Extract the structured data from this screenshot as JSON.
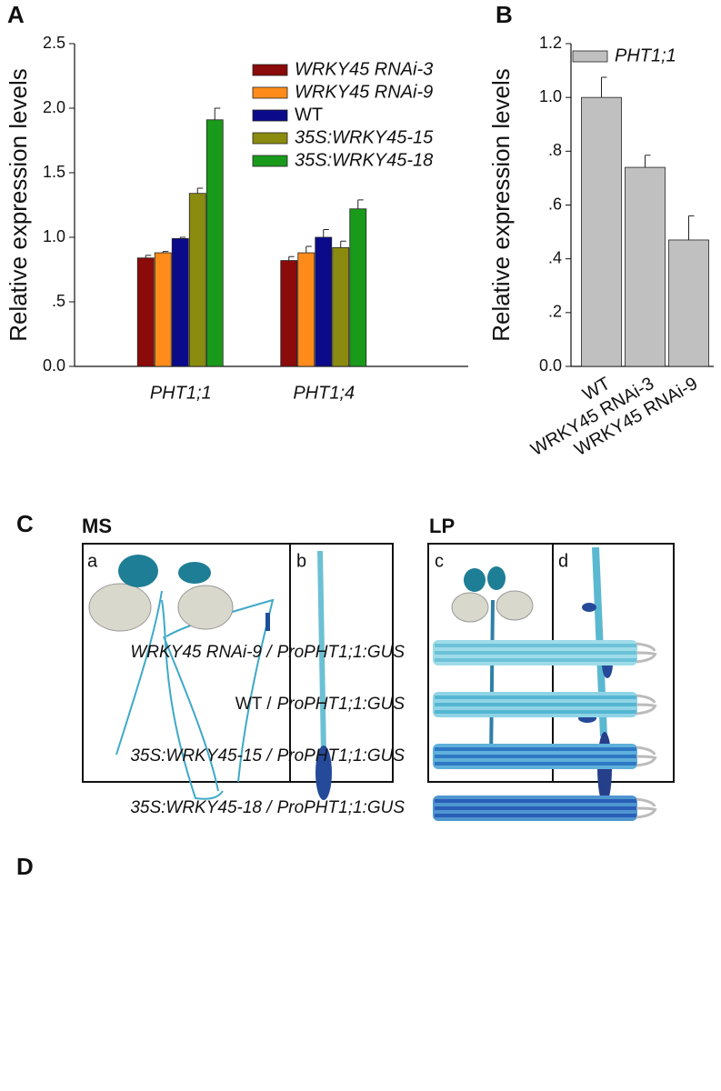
{
  "chart_data": [
    {
      "type": "bar",
      "panel": "A",
      "ylabel": "Relative expression levels",
      "categories": [
        "PHT1;1",
        "PHT1;4"
      ],
      "series": [
        {
          "name": "WRKY45 RNAi-3",
          "italic": true,
          "color": "#8b0a0a",
          "values": [
            0.84,
            0.82
          ],
          "errors": [
            0.02,
            0.03
          ]
        },
        {
          "name": "WRKY45 RNAi-9",
          "italic": true,
          "color": "#ff8c1a",
          "values": [
            0.88,
            0.88
          ],
          "errors": [
            0.01,
            0.05
          ]
        },
        {
          "name": "WT",
          "italic": false,
          "color": "#0a0a8b",
          "values": [
            0.99,
            1.0
          ],
          "errors": [
            0.01,
            0.06
          ]
        },
        {
          "name": "35S:WRKY45-15",
          "italic": true,
          "color": "#8b8b10",
          "values": [
            1.34,
            0.92
          ],
          "errors": [
            0.04,
            0.05
          ]
        },
        {
          "name": "35S:WRKY45-18",
          "italic": true,
          "color": "#1a9a1a",
          "values": [
            1.91,
            1.22
          ],
          "errors": [
            0.09,
            0.07
          ]
        }
      ],
      "ylim": [
        0,
        2.5
      ],
      "yticks": [
        {
          "value": 0,
          "label": "0.0"
        },
        {
          "value": 0.5,
          "label": ".5"
        },
        {
          "value": 1,
          "label": "1.0"
        },
        1.5,
        {
          "value": 2,
          "label": "2.0"
        },
        2.5
      ],
      "legend": "top-right"
    },
    {
      "type": "bar",
      "panel": "B",
      "ylabel": "Relative expression levels",
      "categories": [
        "WT",
        "WRKY45 RNAi-3",
        "WRKY45 RNAi-9"
      ],
      "series": [
        {
          "name": "PHT1;1",
          "italic": true,
          "color": "#c0c0c0",
          "values": [
            1.0,
            0.74,
            0.47
          ],
          "errors": [
            0.075,
            0.045,
            0.09
          ]
        }
      ],
      "ylim": [
        0,
        1.2
      ],
      "yticks": [
        {
          "value": 0,
          "label": "0.0"
        },
        {
          "value": 0.2,
          "label": ".2"
        },
        {
          "value": 0.4,
          "label": ".4"
        },
        {
          "value": 0.6,
          "label": ".6"
        },
        {
          "value": 0.8,
          "label": ".8"
        },
        {
          "value": 1,
          "label": "1.0"
        },
        1.2
      ],
      "legend": "top-right"
    }
  ],
  "panel_c": {
    "label": "C",
    "conditions": [
      "MS",
      "LP"
    ],
    "subpanels": [
      "a",
      "b",
      "c",
      "d"
    ]
  },
  "panel_d": {
    "label": "D",
    "rows": [
      {
        "genotype": "WRKY45 RNAi-9 /",
        "genotype_italic": true,
        "reporter": "ProPHT1;1:GUS"
      },
      {
        "genotype": "WT /",
        "genotype_italic": false,
        "reporter": "ProPHT1;1:GUS"
      },
      {
        "genotype": "35S:WRKY45-15 /",
        "genotype_italic": true,
        "reporter": "ProPHT1;1:GUS"
      },
      {
        "genotype": "35S:WRKY45-18 /",
        "genotype_italic": true,
        "reporter": "ProPHT1;1:GUS"
      }
    ]
  }
}
